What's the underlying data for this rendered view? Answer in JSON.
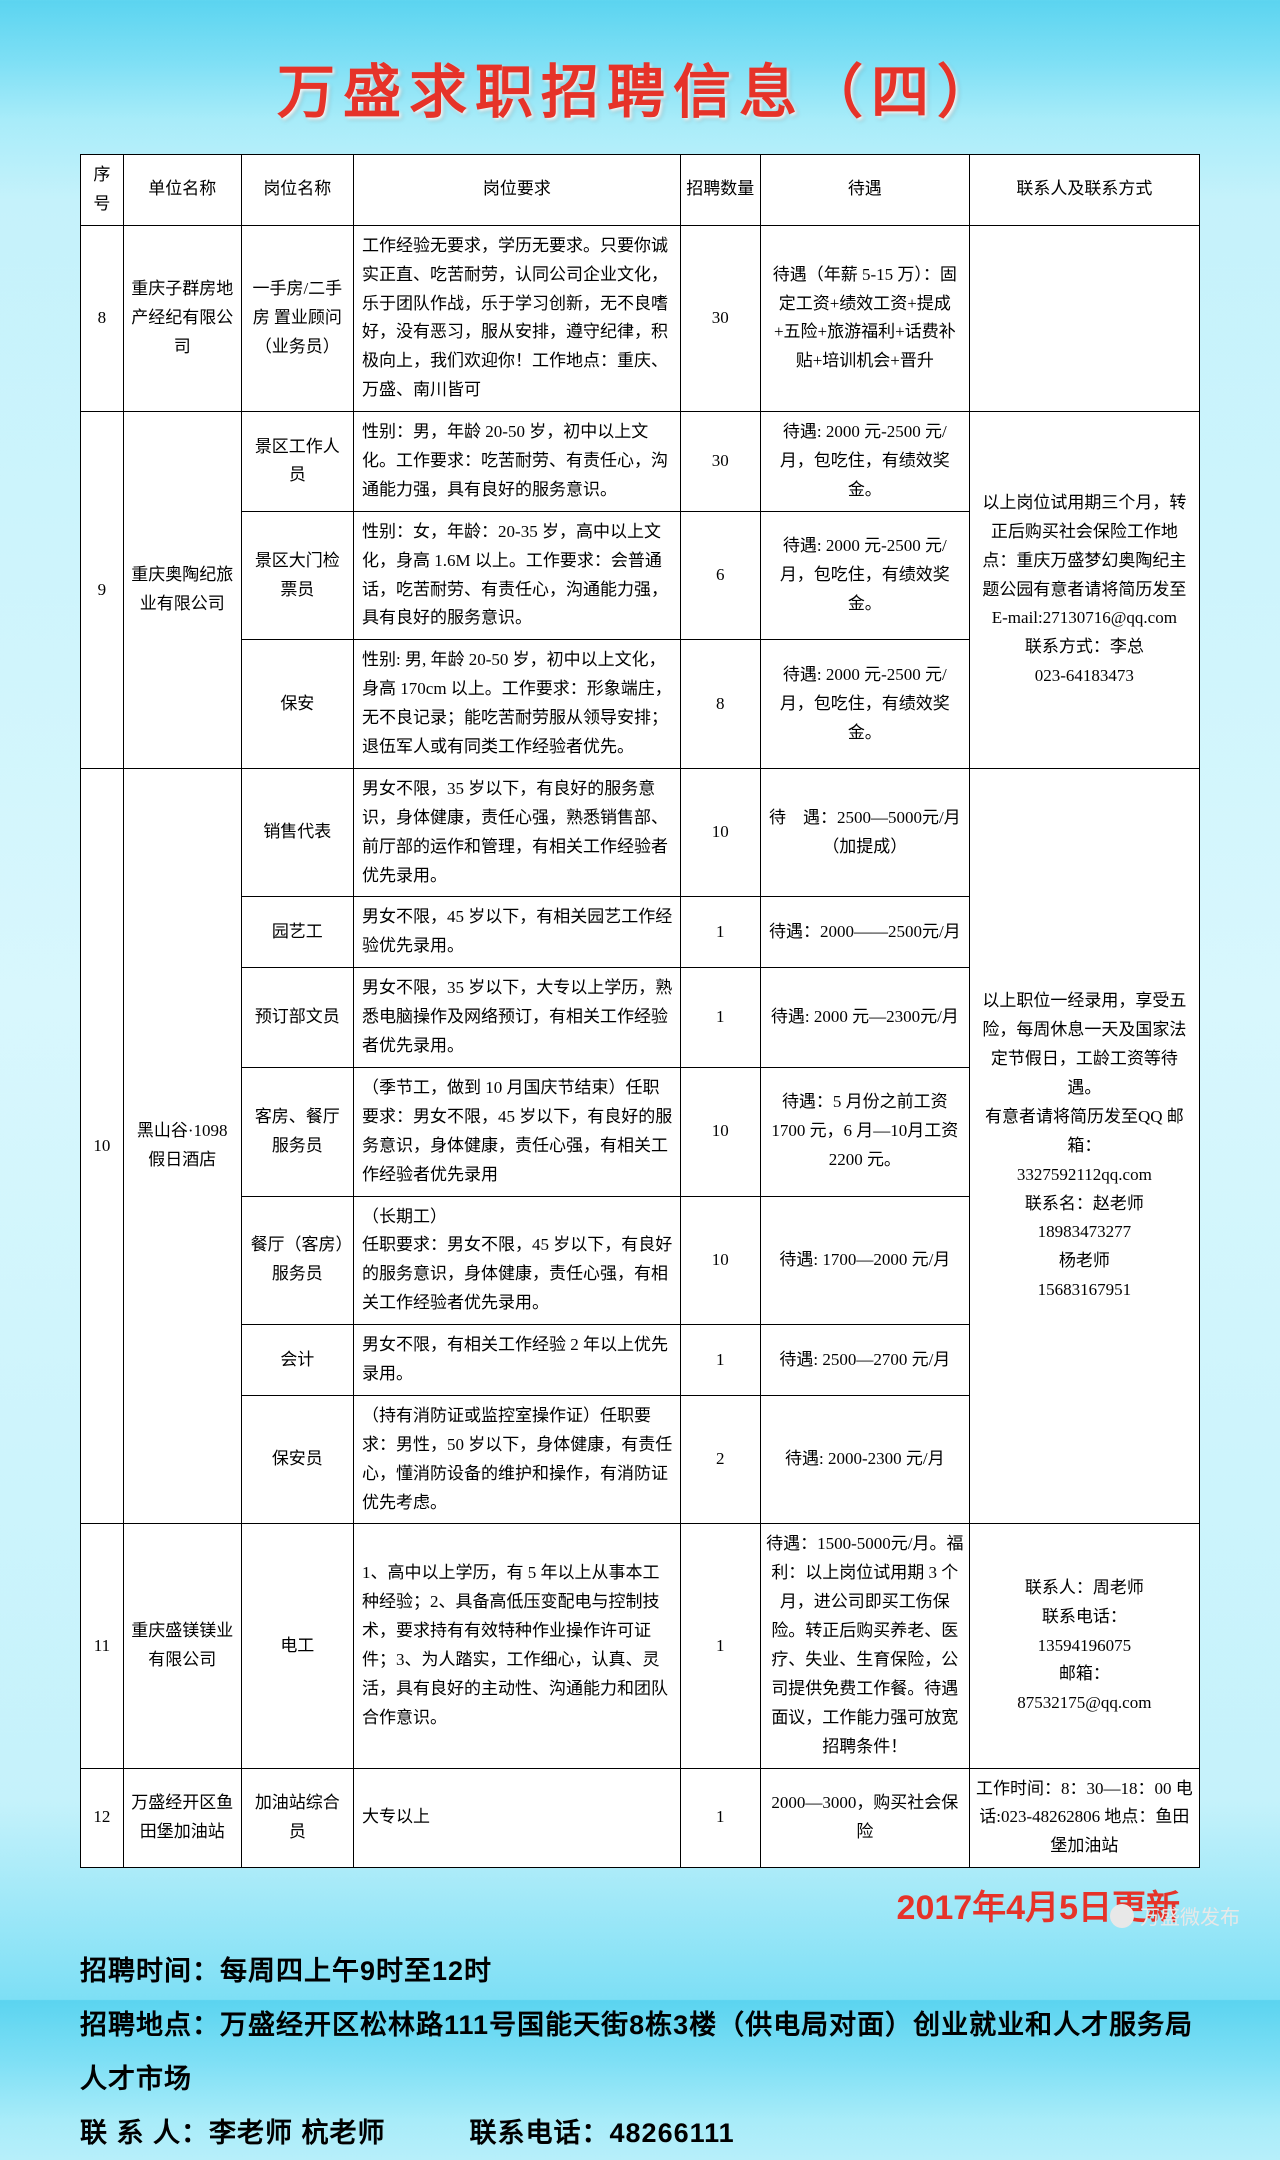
{
  "title": "万盛求职招聘信息（四）",
  "update": "2017年4月5日更新",
  "columns": [
    "序号",
    "单位名称",
    "岗位名称",
    "岗位要求",
    "招聘数量",
    "待遇",
    "联系人及联系方式"
  ],
  "rows": [
    {
      "no": "8",
      "company": "重庆子群房地产经纪有限公司",
      "position": "一手房/二手房 置业顾问（业务员）",
      "req": "工作经验无要求，学历无要求。只要你诚实正直、吃苦耐劳，认同公司企业文化，乐于团队作战，乐于学习创新，无不良嗜好，没有恶习，服从安排，遵守纪律，积极向上，我们欢迎你！工作地点：重庆、万盛、南川皆可",
      "qty": "30",
      "salary": "待遇（年薪 5-15 万）：固定工资+绩效工资+提成+五险+旅游福利+话费补贴+培训机会+晋升",
      "contact": ""
    },
    {
      "no": "9",
      "company": "重庆奥陶纪旅业有限公司",
      "group_contact": "以上岗位试用期三个月，转正后购买社会保险工作地点：重庆万盛梦幻奥陶纪主题公园有意者请将简历发至E-mail:27130716@qq.com\n联系方式：李总\n023-64183473",
      "sub": [
        {
          "position": "景区工作人员",
          "req": "性别：男，年龄 20-50 岁，初中以上文化。工作要求：吃苦耐劳、有责任心，沟通能力强，具有良好的服务意识。",
          "qty": "30",
          "salary": "待遇: 2000 元-2500 元/月，包吃住，有绩效奖金。"
        },
        {
          "position": "景区大门检票员",
          "req": "性别：女，年龄：20-35 岁，高中以上文化，身高 1.6M 以上。工作要求：会普通话，吃苦耐劳、有责任心，沟通能力强，具有良好的服务意识。",
          "qty": "6",
          "salary": "待遇: 2000 元-2500 元/月，包吃住，有绩效奖金。"
        },
        {
          "position": "保安",
          "req": "性别: 男, 年龄 20-50 岁，初中以上文化，身高 170cm 以上。工作要求：形象端庄，无不良记录；能吃苦耐劳服从领导安排；退伍军人或有同类工作经验者优先。",
          "qty": "8",
          "salary": "待遇: 2000 元-2500 元/月，包吃住，有绩效奖金。"
        }
      ]
    },
    {
      "no": "10",
      "company": "黑山谷·1098 假日酒店",
      "group_contact": "以上职位一经录用，享受五险，每周休息一天及国家法定节假日，工龄工资等待遇。\n有意者请将简历发至QQ 邮箱：\n3327592112qq.com\n联系名：赵老师\n18983473277\n杨老师\n15683167951",
      "sub": [
        {
          "position": "销售代表",
          "req": "男女不限，35 岁以下，有良好的服务意识，身体健康，责任心强，熟悉销售部、前厅部的运作和管理，有相关工作经验者优先录用。",
          "qty": "10",
          "salary": "待　遇：2500—5000元/月（加提成）"
        },
        {
          "position": "园艺工",
          "req": "男女不限，45 岁以下，有相关园艺工作经验优先录用。",
          "qty": "1",
          "salary": "待遇：2000——2500元/月"
        },
        {
          "position": "预订部文员",
          "req": "男女不限，35 岁以下，大专以上学历，熟悉电脑操作及网络预订，有相关工作经验者优先录用。",
          "qty": "1",
          "salary": "待遇: 2000 元—2300元/月"
        },
        {
          "position": "客房、餐厅服务员",
          "req": "（季节工，做到 10 月国庆节结束）任职要求：男女不限，45 岁以下，有良好的服务意识，身体健康，责任心强，有相关工作经验者优先录用",
          "qty": "10",
          "salary": "待遇：5 月份之前工资 1700 元，6 月—10月工资 2200 元。"
        },
        {
          "position": "餐厅（客房）服务员",
          "req": "（长期工）\n任职要求：男女不限，45 岁以下，有良好的服务意识，身体健康，责任心强，有相关工作经验者优先录用。",
          "qty": "10",
          "salary": "待遇: 1700—2000 元/月"
        },
        {
          "position": "会计",
          "req": "男女不限，有相关工作经验 2 年以上优先录用。",
          "qty": "1",
          "salary": "待遇: 2500—2700 元/月"
        },
        {
          "position": "保安员",
          "req": "（持有消防证或监控室操作证）任职要求：男性，50 岁以下，身体健康，有责任心，懂消防设备的维护和操作，有消防证优先考虑。",
          "qty": "2",
          "salary": "待遇: 2000-2300 元/月"
        }
      ]
    },
    {
      "no": "11",
      "company": "重庆盛镁镁业有限公司",
      "position": "电工",
      "req": "1、高中以上学历，有 5 年以上从事本工种经验；2、具备高低压变配电与控制技术，要求持有有效特种作业操作许可证件；3、为人踏实，工作细心，认真、灵活，具有良好的主动性、沟通能力和团队合作意识。",
      "qty": "1",
      "salary": "待遇：1500-5000元/月。福利：以上岗位试用期 3 个月，进公司即买工伤保险。转正后购买养老、医疗、失业、生育保险，公司提供免费工作餐。待遇面议，工作能力强可放宽招聘条件！",
      "contact": "联系人：周老师\n联系电话：\n13594196075\n邮箱：\n87532175@qq.com"
    },
    {
      "no": "12",
      "company": "万盛经开区鱼田堡加油站",
      "position": "加油站综合员",
      "req": "大专以上",
      "qty": "1",
      "salary": "2000—3000，购买社会保险",
      "contact": "工作时间：8：30—18：00 电话:023-48262806 地点：鱼田堡加油站"
    }
  ],
  "footer": {
    "l1": "招聘时间：每周四上午9时至12时",
    "l2": "招聘地点：万盛经开区松林路111号国能天街8栋3楼（供电局对面）创业就业和人才服务局人才市场",
    "l3a": "联 系 人：李老师  杭老师",
    "l3b": "联系电话：48266111"
  },
  "watermark": "万盛微发布"
}
